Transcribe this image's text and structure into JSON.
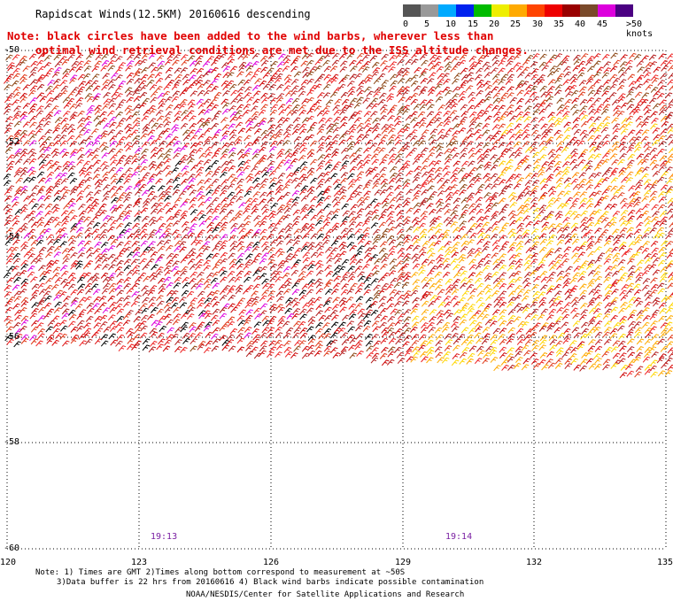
{
  "title": "Rapidscat Winds(12.5KM) 20160616 descending",
  "note": {
    "line1": "Note: black circles have been added to the wind barbs, wherever less than",
    "line2": "optimal wind retrieval conditions are met due to the ISS altitude changes."
  },
  "legend": {
    "labels": [
      "0",
      "5",
      "10",
      "15",
      "20",
      "25",
      "30",
      "35",
      "40",
      "45",
      ">50 knots"
    ],
    "colors": [
      "#555555",
      "#999999",
      "#00aaff",
      "#0022ee",
      "#00bb00",
      "#eeee00",
      "#ffaa00",
      "#ff4400",
      "#ee0000",
      "#990000",
      "#7a4a2a",
      "#dd00dd",
      "#4b0082"
    ]
  },
  "axes": {
    "lat_labels": [
      "-50",
      "-52",
      "-54",
      "-56",
      "-58",
      "-60"
    ],
    "lon_labels": [
      "120",
      "123",
      "126",
      "129",
      "132",
      "135"
    ]
  },
  "times": [
    "19:13",
    "19:14"
  ],
  "footer": {
    "line1": "Note: 1) Times are GMT 2)Times along bottom correspond to measurement at ~50S",
    "line2": "3)Data buffer is 22 hrs from 20160616 4) Black wind barbs indicate possible contamination",
    "line3": "NOAA/NESDIS/Center for Satellite Applications and Research"
  }
}
